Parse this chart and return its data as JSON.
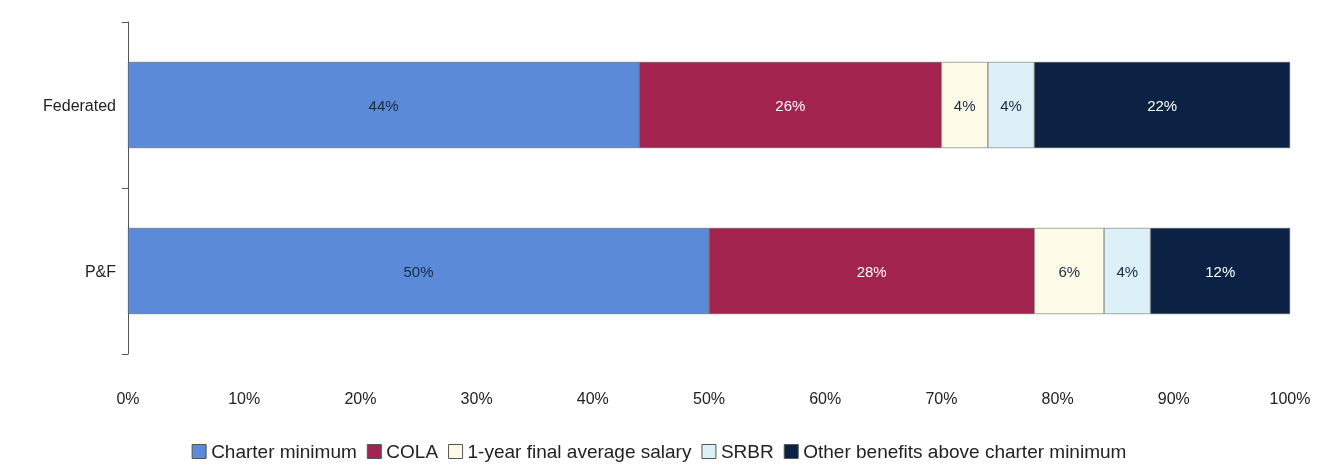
{
  "chart_data": {
    "type": "bar",
    "orientation": "horizontal",
    "stacked": true,
    "categories": [
      "Federated",
      "P&F"
    ],
    "xlim": [
      0,
      100
    ],
    "xticks": [
      {
        "value": 0,
        "label": "0%"
      },
      {
        "value": 10,
        "label": "10%"
      },
      {
        "value": 20,
        "label": "20%"
      },
      {
        "value": 30,
        "label": "30%"
      },
      {
        "value": 40,
        "label": "40%"
      },
      {
        "value": 50,
        "label": "50%"
      },
      {
        "value": 60,
        "label": "60%"
      },
      {
        "value": 70,
        "label": "70%"
      },
      {
        "value": 80,
        "label": "80%"
      },
      {
        "value": 90,
        "label": "90%"
      },
      {
        "value": 100,
        "label": "100%"
      }
    ],
    "series": [
      {
        "name": "Charter minimum",
        "color": "#5b8ad8",
        "values": [
          44,
          50
        ],
        "value_labels": [
          "44%",
          "50%"
        ]
      },
      {
        "name": "COLA",
        "color": "#a3234f",
        "values": [
          26,
          28
        ],
        "value_labels": [
          "26%",
          "28%"
        ]
      },
      {
        "name": "1-year final average salary",
        "color": "#fdfbe8",
        "values": [
          4,
          6
        ],
        "value_labels": [
          "4%",
          "6%"
        ]
      },
      {
        "name": "SRBR",
        "color": "#dcf0f8",
        "values": [
          4,
          4
        ],
        "value_labels": [
          "4%",
          "4%"
        ]
      },
      {
        "name": "Other benefits above charter minimum",
        "color": "#0c2244",
        "values": [
          22,
          12
        ],
        "value_labels": [
          "22%",
          "12%"
        ]
      }
    ],
    "grid": false,
    "legend": "bottom"
  }
}
